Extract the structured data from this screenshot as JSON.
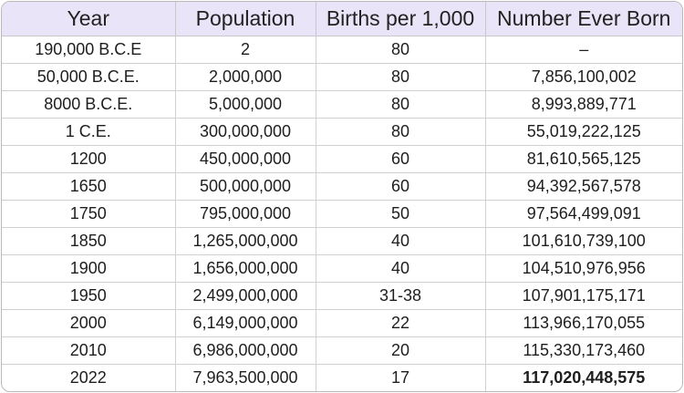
{
  "table": {
    "headers": [
      "Year",
      "Population",
      "Births per 1,000",
      "Number Ever Born"
    ],
    "rows": [
      {
        "year": "190,000 B.C.E",
        "population": "2",
        "births": "80",
        "born": "–"
      },
      {
        "year": "50,000 B.C.E.",
        "population": "2,000,000",
        "births": "80",
        "born": "7,856,100,002"
      },
      {
        "year": "8000 B.C.E.",
        "population": "5,000,000",
        "births": "80",
        "born": "8,993,889,771"
      },
      {
        "year": "1 C.E.",
        "population": "300,000,000",
        "births": "80",
        "born": "55,019,222,125"
      },
      {
        "year": "1200",
        "population": "450,000,000",
        "births": "60",
        "born": "81,610,565,125"
      },
      {
        "year": "1650",
        "population": "500,000,000",
        "births": "60",
        "born": "94,392,567,578"
      },
      {
        "year": "1750",
        "population": "795,000,000",
        "births": "50",
        "born": "97,564,499,091"
      },
      {
        "year": "1850",
        "population": "1,265,000,000",
        "births": "40",
        "born": "101,610,739,100"
      },
      {
        "year": "1900",
        "population": "1,656,000,000",
        "births": "40",
        "born": "104,510,976,956"
      },
      {
        "year": "1950",
        "population": "2,499,000,000",
        "births": "31-38",
        "born": "107,901,175,171"
      },
      {
        "year": "2000",
        "population": "6,149,000,000",
        "births": "22",
        "born": "113,966,170,055"
      },
      {
        "year": "2010",
        "population": "6,986,000,000",
        "births": "20",
        "born": "115,330,173,460"
      },
      {
        "year": "2022",
        "population": "7,963,500,000",
        "births": "17",
        "born": "117,020,448,575"
      }
    ]
  },
  "colors": {
    "header_background": "#e9e4f7",
    "grid_line": "#d0d0d0",
    "text": "#1e1e1e"
  }
}
